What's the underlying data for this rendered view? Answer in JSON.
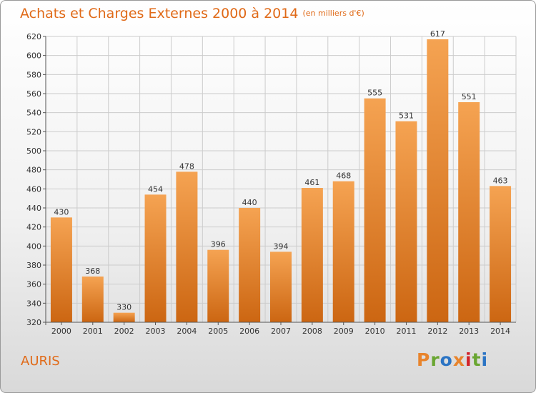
{
  "title": "Achats et Charges Externes 2000 à 2014",
  "subtitle": "(en milliers d'€)",
  "place": "AURIS",
  "logo": {
    "text": "Proxiti",
    "colors": [
      "#e8842c",
      "#6aa632",
      "#2b74c4",
      "#e8842c",
      "#d2232a",
      "#6aa632",
      "#2b74c4"
    ]
  },
  "colors": {
    "title": "#e06a18",
    "bar_top": "#f5a352",
    "bar_bottom": "#cc6612",
    "grid": "#cccccc"
  },
  "chart_data": {
    "type": "bar",
    "categories": [
      "2000",
      "2001",
      "2002",
      "2003",
      "2004",
      "2005",
      "2006",
      "2007",
      "2008",
      "2009",
      "2010",
      "2011",
      "2012",
      "2013",
      "2014"
    ],
    "values": [
      430,
      368,
      330,
      454,
      478,
      396,
      440,
      394,
      461,
      468,
      555,
      531,
      617,
      551,
      463
    ],
    "ylim": [
      320,
      620
    ],
    "yticks": [
      320,
      340,
      360,
      380,
      400,
      420,
      440,
      460,
      480,
      500,
      520,
      540,
      560,
      580,
      600,
      620
    ],
    "grid": true
  }
}
